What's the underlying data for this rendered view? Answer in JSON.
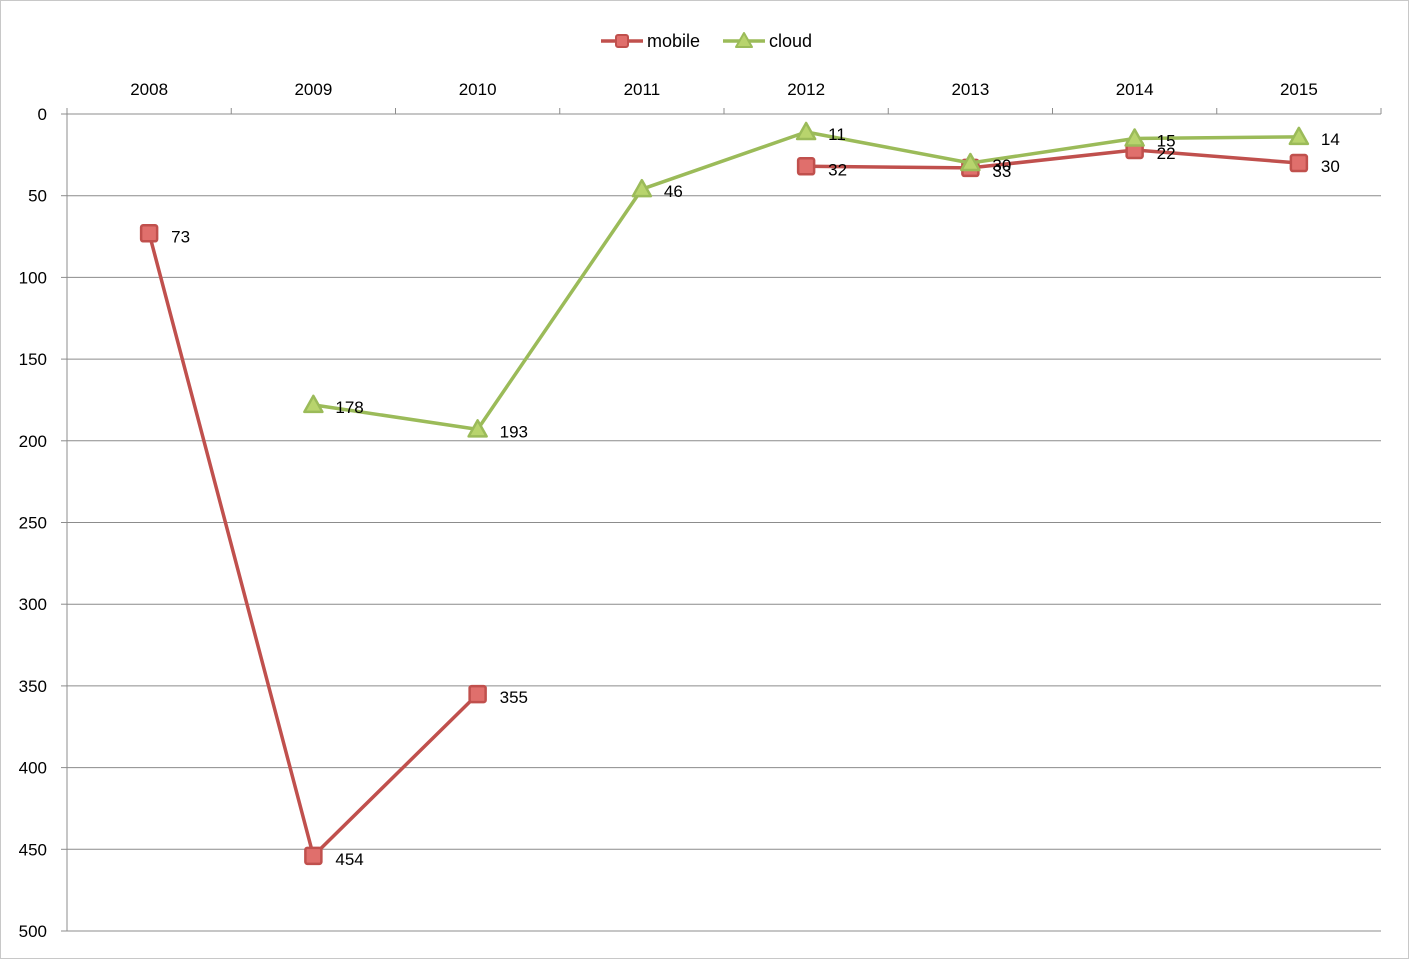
{
  "chart_data": {
    "type": "line",
    "categories": [
      "2008",
      "2009",
      "2010",
      "2011",
      "2012",
      "2013",
      "2014",
      "2015"
    ],
    "series": [
      {
        "name": "mobile",
        "color": "#c0504d",
        "marker": "square",
        "values": [
          73,
          454,
          355,
          null,
          32,
          33,
          22,
          30
        ]
      },
      {
        "name": "cloud",
        "color": "#9bbb59",
        "marker": "triangle",
        "values": [
          null,
          178,
          193,
          46,
          11,
          30,
          15,
          14
        ]
      }
    ],
    "y_ticks": [
      "0",
      "50",
      "100",
      "150",
      "200",
      "250",
      "300",
      "350",
      "400",
      "450",
      "500"
    ],
    "ylim": [
      0,
      500
    ],
    "y_reversed": true,
    "x_axis_position": "top",
    "grid": true,
    "legend_position": "top-center",
    "data_labels": true
  }
}
